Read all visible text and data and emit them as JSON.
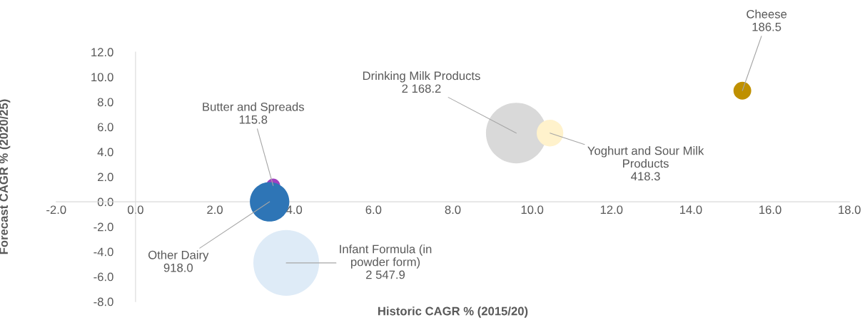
{
  "chart_data": {
    "type": "bubble",
    "xlabel": "Historic CAGR % (2015/20)",
    "ylabel": "Forecast CAGR % (2020/25)",
    "x": [
      15.3,
      9.6,
      10.45,
      3.47,
      3.38,
      3.8
    ],
    "values": [
      8.9,
      5.5,
      5.5,
      1.3,
      0.0,
      -4.9
    ],
    "sizes": [
      0.073,
      0.851,
      0.164,
      0.045,
      0.36,
      1
    ],
    "colors": [
      "#bf9000",
      "#d9d9d9",
      "#fff2cc",
      "#a040c0",
      "#2e75b6",
      "#deebf7"
    ],
    "annotations": [
      {
        "text": "Cheese\n186.5",
        "x": 15.3,
        "y": 8.9
      },
      {
        "text": "Drinking Milk Products\n2 168.2",
        "x": 9.6,
        "y": 5.5
      },
      {
        "text": "Yoghurt and Sour Milk\nProducts\n418.3",
        "x": 10.45,
        "y": 5.5
      },
      {
        "text": "Butter and Spreads\n115.8",
        "x": 3.47,
        "y": 1.3
      },
      {
        "text": "Other Dairy\n918.0",
        "x": 3.38,
        "y": 0.0
      },
      {
        "text": "Infant Formula (in\npowder form)\n2 547.9",
        "x": 3.8,
        "y": -4.9
      }
    ],
    "xlim": [
      -2,
      18
    ],
    "xticks": [
      {
        "value": -2,
        "label": "-2.0"
      },
      {
        "value": 0,
        "label": "0.0"
      },
      {
        "value": 2,
        "label": "2.0"
      },
      {
        "value": 4,
        "label": "4.0"
      },
      {
        "value": 6,
        "label": "6.0"
      },
      {
        "value": 8,
        "label": "8.0"
      },
      {
        "value": 10,
        "label": "10.0"
      },
      {
        "value": 12,
        "label": "12.0"
      },
      {
        "value": 14,
        "label": "14.0"
      },
      {
        "value": 16,
        "label": "16.0"
      },
      {
        "value": 18,
        "label": "18.0"
      }
    ],
    "ylim": [
      -8,
      12
    ],
    "yticks": [
      {
        "value": -8,
        "label": "-8.0"
      },
      {
        "value": -6,
        "label": "-6.0"
      },
      {
        "value": -4,
        "label": "-4.0"
      },
      {
        "value": -2,
        "label": "-2.0"
      },
      {
        "value": 0,
        "label": "0.0"
      },
      {
        "value": 2,
        "label": "2.0"
      },
      {
        "value": 4,
        "label": "4.0"
      },
      {
        "value": 6,
        "label": "6.0"
      },
      {
        "value": 8,
        "label": "8.0"
      },
      {
        "value": 10,
        "label": "10.0"
      },
      {
        "value": 12,
        "label": "12.0"
      }
    ],
    "grid": false,
    "legend": false
  }
}
